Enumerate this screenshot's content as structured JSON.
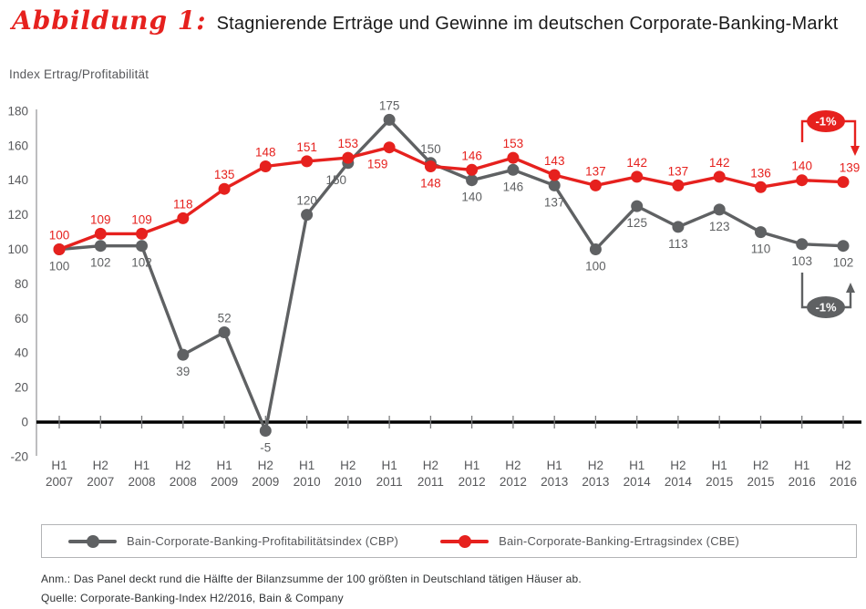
{
  "figure": {
    "label": "Abbildung 1:",
    "title": "Stagnierende Erträge und Gewinne im deutschen Corporate-Banking-Markt"
  },
  "y_axis_title": "Index Ertrag/Profitabilität",
  "colors": {
    "cbp_gray": "#5f6163",
    "cbe_red": "#e6211e",
    "axis_line": "#9a9b9d",
    "zero_line": "#000000",
    "tick_text": "#57585b",
    "annotation_text": "#ffffff"
  },
  "chart_data": {
    "type": "line",
    "title": "Stagnierende Erträge und Gewinne im deutschen Corporate-Banking-Markt",
    "xlabel": "",
    "ylabel": "Index Ertrag/Profitabilität",
    "ylim": [
      -20,
      180
    ],
    "ytick_step": 20,
    "grid": false,
    "legend_position": "bottom",
    "categories": [
      "H1 2007",
      "H2 2007",
      "H1 2008",
      "H2 2008",
      "H1 2009",
      "H2 2009",
      "H1 2010",
      "H2 2010",
      "H1 2011",
      "H2 2011",
      "H1 2012",
      "H2 2012",
      "H1 2013",
      "H2 2013",
      "H1 2014",
      "H2 2014",
      "H1 2015",
      "H2 2015",
      "H1 2016",
      "H2 2016"
    ],
    "series": [
      {
        "name": "Bain-Corporate-Banking-Profitabilitätsindex (CBP)",
        "short": "CBP",
        "color": "#5f6163",
        "values": [
          100,
          102,
          102,
          39,
          52,
          -5,
          120,
          150,
          175,
          150,
          140,
          146,
          137,
          100,
          125,
          113,
          123,
          110,
          103,
          102
        ],
        "label_positions": [
          "below",
          "below",
          "below",
          "below",
          "above",
          "below",
          "above",
          "below",
          "above",
          "above",
          "below",
          "below",
          "below",
          "below",
          "below",
          "below",
          "below",
          "below",
          "below",
          "below"
        ]
      },
      {
        "name": "Bain-Corporate-Banking-Ertragsindex (CBE)",
        "short": "CBE",
        "color": "#e6211e",
        "values": [
          100,
          109,
          109,
          118,
          135,
          148,
          151,
          153,
          159,
          148,
          146,
          153,
          143,
          137,
          142,
          137,
          142,
          136,
          140,
          139
        ],
        "label_positions": [
          "above",
          "above",
          "above",
          "above",
          "above",
          "above",
          "above",
          "above",
          "below",
          "below",
          "above",
          "above",
          "above",
          "above",
          "above",
          "above",
          "above",
          "above",
          "above",
          "above"
        ]
      }
    ],
    "annotations": [
      {
        "text": "-1%",
        "series": "CBE",
        "from": "H1 2016",
        "to": "H2 2016",
        "arrow_direction": "down"
      },
      {
        "text": "-1%",
        "series": "CBP",
        "from": "H1 2016",
        "to": "H2 2016",
        "arrow_direction": "up"
      }
    ]
  },
  "legend": {
    "items": [
      {
        "label": "Bain-Corporate-Banking-Profitabilitätsindex (CBP)"
      },
      {
        "label": "Bain-Corporate-Banking-Ertragsindex (CBE)"
      }
    ]
  },
  "footnotes": {
    "note": "Anm.: Das Panel deckt rund die Hälfte der Bilanzsumme der 100 größten in Deutschland tätigen Häuser ab.",
    "source": "Quelle: Corporate-Banking-Index H2/2016, Bain & Company"
  }
}
